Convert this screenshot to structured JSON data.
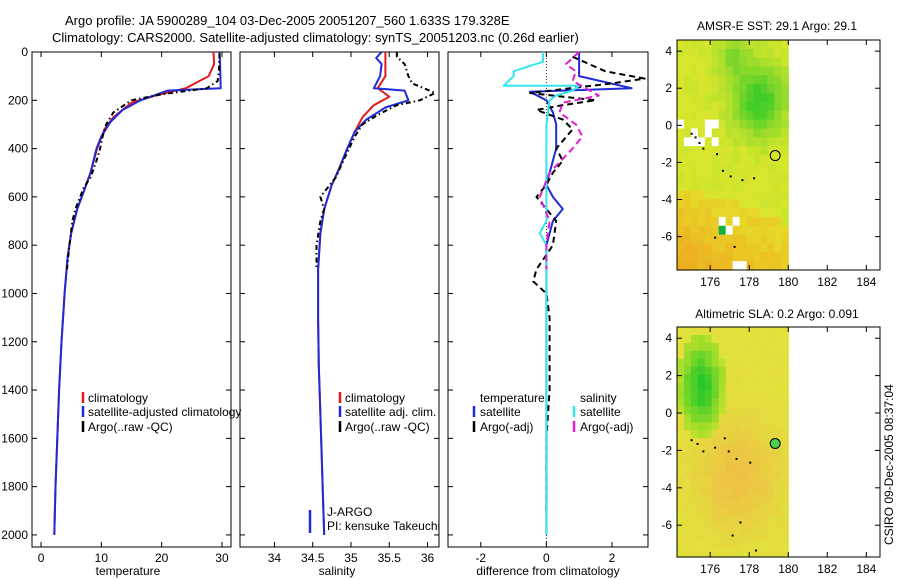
{
  "title": {
    "line1": "Argo profile: JA 5900289_104 03-Dec-2005 20051207_560 1.633S 179.328E",
    "line2": "Climatology: CARS2000. Satellite-adjusted climatology: synTS_20051203.nc (0.26d earlier)"
  },
  "side_label": "CSIRO 09-Dec-2005 08:37:04",
  "colors": {
    "climatology": "#e31a1c",
    "satellite": "#1f2bd6",
    "argo": "#000000",
    "sal_satellite": "#33e6f0",
    "sal_argo": "#e020d0"
  },
  "chart_data": [
    {
      "id": "temperature",
      "type": "line",
      "xlabel": "temperature",
      "xlim": [
        -1.5,
        31.5
      ],
      "ylim": [
        0,
        2050
      ],
      "y_reversed": true,
      "xticks": [
        0,
        10,
        20,
        30
      ],
      "yticks": [
        0,
        200,
        400,
        600,
        800,
        1000,
        1200,
        1400,
        1600,
        1800,
        2000
      ],
      "legend": {
        "position": "lower-middle",
        "entries": [
          "climatology",
          "satellite-adjusted climatology",
          "Argo(..raw -QC)"
        ]
      },
      "series": [
        {
          "name": "climatology",
          "color": "#e31a1c",
          "dash": "",
          "points": [
            [
              28.6,
              0
            ],
            [
              28.7,
              50
            ],
            [
              27.8,
              100
            ],
            [
              24,
              150
            ],
            [
              19,
              180
            ],
            [
              15,
              210
            ],
            [
              12,
              270
            ],
            [
              10.5,
              320
            ],
            [
              9.3,
              400
            ],
            [
              8.2,
              500
            ],
            [
              7.2,
              570
            ],
            [
              6,
              650
            ],
            [
              5,
              750
            ],
            [
              4.4,
              850
            ],
            [
              3.9,
              1000
            ],
            [
              3.4,
              1200
            ],
            [
              3,
              1400
            ],
            [
              2.7,
              1600
            ],
            [
              2.4,
              1800
            ],
            [
              2.2,
              2000
            ]
          ]
        },
        {
          "name": "satellite-adjusted climatology",
          "color": "#1f2bd6",
          "dash": "",
          "points": [
            [
              29.6,
              0
            ],
            [
              29.7,
              50
            ],
            [
              29.8,
              150
            ],
            [
              21,
              160
            ],
            [
              16.5,
              200
            ],
            [
              13.5,
              240
            ],
            [
              11.5,
              290
            ],
            [
              10,
              350
            ],
            [
              9.2,
              400
            ],
            [
              8.2,
              500
            ],
            [
              7.2,
              570
            ],
            [
              6,
              650
            ],
            [
              5,
              750
            ],
            [
              4.4,
              850
            ],
            [
              3.9,
              1000
            ],
            [
              3.4,
              1200
            ],
            [
              3,
              1400
            ],
            [
              2.7,
              1600
            ],
            [
              2.4,
              1800
            ],
            [
              2.2,
              2000
            ]
          ]
        },
        {
          "name": "Argo(..raw -QC)",
          "color": "#000000",
          "dash": "5,3,1.5,3",
          "points": [
            [
              29.6,
              5
            ],
            [
              29.5,
              80
            ],
            [
              29.3,
              120
            ],
            [
              27.5,
              150
            ],
            [
              20,
              175
            ],
            [
              15,
              200
            ],
            [
              12,
              250
            ],
            [
              10.8,
              300
            ],
            [
              10.2,
              350
            ],
            [
              9.8,
              400
            ],
            [
              9.2,
              450
            ],
            [
              8.2,
              520
            ],
            [
              7.1,
              560
            ],
            [
              6.5,
              600
            ],
            [
              5.7,
              650
            ],
            [
              5.2,
              700
            ],
            [
              4.7,
              800
            ],
            [
              4.3,
              900
            ]
          ]
        }
      ]
    },
    {
      "id": "salinity",
      "type": "line",
      "xlabel": "salinity",
      "xlim": [
        33.55,
        36.15
      ],
      "ylim": [
        0,
        2050
      ],
      "y_reversed": true,
      "xticks": [
        34,
        34.5,
        35,
        35.5,
        36
      ],
      "legend": {
        "position": "lower-middle",
        "entries": [
          "climatology",
          "satellite adj. clim.",
          "Argo(..raw -QC)"
        ]
      },
      "annotation": [
        "J-ARGO",
        "PI: kensuke Takeuchi"
      ],
      "series": [
        {
          "name": "climatology",
          "color": "#e31a1c",
          "dash": "",
          "points": [
            [
              35.45,
              0
            ],
            [
              35.45,
              100
            ],
            [
              35.35,
              150
            ],
            [
              35.5,
              185
            ],
            [
              35.3,
              220
            ],
            [
              35.15,
              270
            ],
            [
              35.05,
              330
            ],
            [
              34.95,
              400
            ],
            [
              34.85,
              480
            ],
            [
              34.75,
              550
            ],
            [
              34.65,
              650
            ],
            [
              34.6,
              750
            ],
            [
              34.57,
              900
            ],
            [
              34.57,
              1100
            ],
            [
              34.58,
              1300
            ],
            [
              34.6,
              1500
            ],
            [
              34.62,
              1700
            ],
            [
              34.64,
              1900
            ],
            [
              34.65,
              2000
            ]
          ]
        },
        {
          "name": "satellite adj. clim.",
          "color": "#1f2bd6",
          "dash": "",
          "points": [
            [
              35.4,
              0
            ],
            [
              35.33,
              25
            ],
            [
              35.4,
              50
            ],
            [
              35.38,
              100
            ],
            [
              35.3,
              150
            ],
            [
              35.7,
              160
            ],
            [
              35.75,
              200
            ],
            [
              35.45,
              230
            ],
            [
              35.2,
              280
            ],
            [
              35.05,
              330
            ],
            [
              34.95,
              400
            ],
            [
              34.85,
              480
            ],
            [
              34.75,
              550
            ],
            [
              34.65,
              650
            ],
            [
              34.6,
              750
            ],
            [
              34.57,
              900
            ],
            [
              34.57,
              1100
            ],
            [
              34.58,
              1300
            ],
            [
              34.6,
              1500
            ],
            [
              34.62,
              1700
            ],
            [
              34.64,
              1900
            ],
            [
              34.65,
              2000
            ]
          ]
        },
        {
          "name": "Argo(..raw -QC)",
          "color": "#000000",
          "dash": "5,3,1.5,3",
          "points": [
            [
              35.6,
              0
            ],
            [
              35.6,
              20
            ],
            [
              35.7,
              50
            ],
            [
              35.75,
              100
            ],
            [
              35.8,
              130
            ],
            [
              36.1,
              170
            ],
            [
              35.9,
              200
            ],
            [
              35.6,
              220
            ],
            [
              35.35,
              260
            ],
            [
              35.15,
              300
            ],
            [
              35.05,
              350
            ],
            [
              34.9,
              450
            ],
            [
              34.8,
              520
            ],
            [
              34.7,
              560
            ],
            [
              34.6,
              600
            ],
            [
              34.65,
              650
            ],
            [
              34.6,
              700
            ],
            [
              34.55,
              800
            ],
            [
              34.55,
              900
            ]
          ]
        }
      ]
    },
    {
      "id": "difference",
      "type": "line",
      "xlabel": "difference from climatology",
      "xlim": [
        -3,
        3.1
      ],
      "ylim": [
        0,
        2050
      ],
      "y_reversed": true,
      "xticks": [
        -2,
        0,
        2
      ],
      "legend": {
        "position": "lower-middle",
        "entries": [
          "temperature",
          "satellite",
          "Argo(-adj)",
          "salinity",
          "satellite",
          "Argo(-adj)"
        ]
      },
      "series": [
        {
          "name": "temperature satellite",
          "color": "#1f2bd6",
          "dash": "",
          "points": [
            [
              1,
              0
            ],
            [
              1,
              100
            ],
            [
              2.6,
              150
            ],
            [
              -0.5,
              165
            ],
            [
              0,
              200
            ],
            [
              0.2,
              250
            ],
            [
              0.3,
              300
            ],
            [
              0.3,
              400
            ],
            [
              0.1,
              500
            ],
            [
              0,
              550
            ],
            [
              0.2,
              600
            ],
            [
              0.5,
              650
            ],
            [
              0.2,
              700
            ],
            [
              0,
              800
            ],
            [
              0,
              2000
            ]
          ]
        },
        {
          "name": "temperature Argo(-adj)",
          "color": "#000000",
          "dash": "6,4",
          "points": [
            [
              0.8,
              20
            ],
            [
              1.8,
              80
            ],
            [
              3,
              110
            ],
            [
              2,
              130
            ],
            [
              -0.5,
              170
            ],
            [
              1.5,
              200
            ],
            [
              0.5,
              220
            ],
            [
              -0.3,
              240
            ],
            [
              0.5,
              280
            ],
            [
              0.8,
              320
            ],
            [
              0.3,
              400
            ],
            [
              0.5,
              450
            ],
            [
              0.2,
              500
            ],
            [
              0,
              550
            ],
            [
              -0.3,
              600
            ],
            [
              0.3,
              700
            ],
            [
              0.2,
              800
            ],
            [
              -0.3,
              900
            ],
            [
              -0.4,
              950
            ],
            [
              0,
              1000
            ],
            [
              0.1,
              1100
            ],
            [
              0.1,
              1200
            ],
            [
              0.1,
              1400
            ],
            [
              0,
              1600
            ],
            [
              0,
              1800
            ],
            [
              0,
              1900
            ]
          ]
        },
        {
          "name": "salinity satellite",
          "color": "#33e6f0",
          "dash": "",
          "points": [
            [
              -0.1,
              0
            ],
            [
              -0.1,
              40
            ],
            [
              -1,
              80
            ],
            [
              -1,
              100
            ],
            [
              -1.3,
              140
            ],
            [
              1,
              140
            ],
            [
              0.8,
              160
            ],
            [
              0.3,
              180
            ],
            [
              0.1,
              200
            ],
            [
              0,
              300
            ],
            [
              0,
              500
            ],
            [
              0,
              700
            ],
            [
              -0.2,
              750
            ],
            [
              0,
              800
            ],
            [
              0,
              1000
            ],
            [
              0,
              1500
            ],
            [
              0,
              2000
            ]
          ]
        },
        {
          "name": "salinity Argo(-adj)",
          "color": "#e020d0",
          "dash": "7,4",
          "points": [
            [
              1,
              0
            ],
            [
              0.6,
              50
            ],
            [
              0.9,
              80
            ],
            [
              0.8,
              120
            ],
            [
              1.6,
              180
            ],
            [
              0.5,
              210
            ],
            [
              0.4,
              250
            ],
            [
              0.9,
              300
            ],
            [
              1.1,
              350
            ],
            [
              0.8,
              400
            ],
            [
              0.1,
              500
            ],
            [
              -0.2,
              600
            ],
            [
              0.1,
              700
            ],
            [
              0,
              800
            ],
            [
              0,
              900
            ]
          ]
        }
      ]
    },
    {
      "id": "sst_map",
      "type": "heatmap",
      "title": "AMSR-E SST: 29.1 Argo: 29.1",
      "xlim": [
        174.3,
        184.7
      ],
      "ylim": [
        -7.8,
        4.6
      ],
      "xticks": [
        176,
        178,
        180,
        182,
        184
      ],
      "yticks": [
        4,
        2,
        0,
        -2,
        -4,
        -6
      ],
      "marker": {
        "lon": 179.33,
        "lat": -1.63
      }
    },
    {
      "id": "sla_map",
      "type": "heatmap",
      "title": "Altimetric SLA: 0.2 Argo: 0.091",
      "xlim": [
        174.3,
        184.7
      ],
      "ylim": [
        -7.7,
        4.6
      ],
      "xticks": [
        176,
        178,
        180,
        182,
        184
      ],
      "yticks": [
        4,
        2,
        0,
        -2,
        -4,
        -6
      ],
      "marker": {
        "lon": 179.33,
        "lat": -1.63
      }
    }
  ]
}
